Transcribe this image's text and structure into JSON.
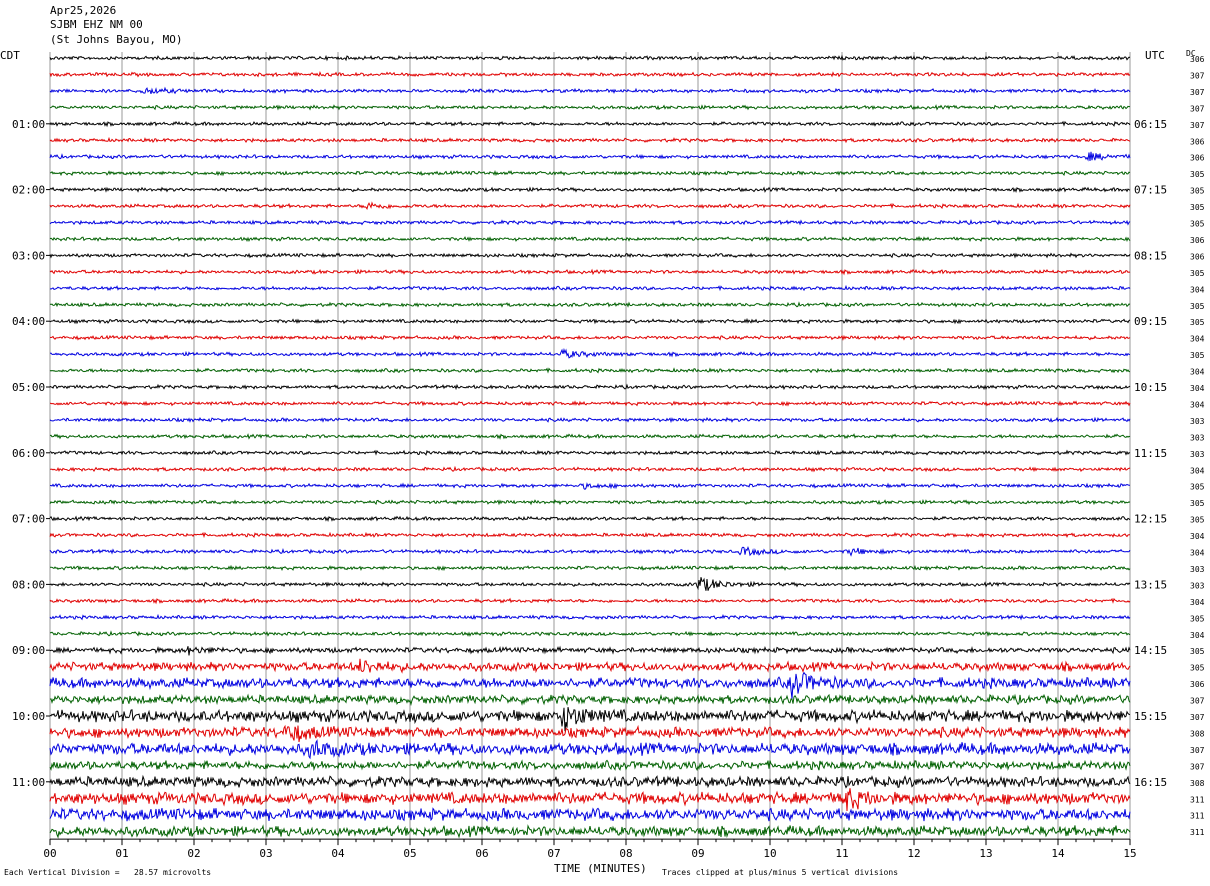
{
  "header": {
    "date": "Apr25,2026",
    "station": "SJBM EHZ NM 00",
    "location": "(St Johns Bayou, MO)"
  },
  "left_tz": "CDT",
  "right_tz": "UTC",
  "dc_label": "DC",
  "footer": {
    "left_note": "Each Vertical Division =   28.57 microvolts",
    "x_title": "TIME (MINUTES)",
    "right_note": "Traces clipped at plus/minus 5 vertical divisions"
  },
  "chart_data": {
    "type": "line",
    "title": "SJBM EHZ NM 00 helicorder",
    "xlabel": "TIME (MINUTES)",
    "xlim": [
      0,
      15
    ],
    "x_ticks": [
      "00",
      "01",
      "02",
      "03",
      "04",
      "05",
      "06",
      "07",
      "08",
      "09",
      "10",
      "11",
      "12",
      "13",
      "14",
      "15"
    ],
    "traces_per_hour": 4,
    "trace_colors": [
      "#000000",
      "#e00000",
      "#0000e0",
      "#006000"
    ],
    "left_hour_labels": [
      "01:00",
      "02:00",
      "03:00",
      "04:00",
      "05:00",
      "06:00",
      "07:00",
      "08:00",
      "09:00",
      "10:00",
      "11:00"
    ],
    "right_hour_labels": [
      "06:15",
      "07:15",
      "08:15",
      "09:15",
      "10:15",
      "11:15",
      "12:15",
      "13:15",
      "14:15",
      "15:15",
      "16:15"
    ],
    "dc_offsets": [
      306,
      307,
      307,
      307,
      307,
      306,
      306,
      305,
      305,
      305,
      305,
      306,
      306,
      305,
      304,
      305,
      305,
      304,
      305,
      304,
      304,
      304,
      303,
      303,
      303,
      304,
      305,
      305,
      305,
      304,
      304,
      303,
      303,
      304,
      305,
      304,
      305,
      305,
      306,
      307,
      307,
      308,
      307,
      307,
      308,
      311,
      311,
      311
    ],
    "amplitudes": [
      2,
      2,
      2,
      2,
      2,
      2,
      2,
      2,
      2,
      2,
      2,
      2,
      2,
      2,
      2,
      2,
      2,
      2,
      2,
      2,
      2,
      2,
      2,
      2,
      2,
      2,
      2,
      2,
      2,
      2,
      2,
      2,
      2,
      2,
      2,
      2,
      3,
      5,
      6,
      5,
      7,
      6,
      7,
      5,
      6,
      7,
      7,
      6
    ],
    "events": [
      {
        "trace": 2,
        "minute": 1.3,
        "amp": 3
      },
      {
        "trace": 6,
        "minute": 14.4,
        "amp": 4
      },
      {
        "trace": 9,
        "minute": 4.4,
        "amp": 3
      },
      {
        "trace": 18,
        "minute": 7.1,
        "amp": 4
      },
      {
        "trace": 26,
        "minute": 7.4,
        "amp": 2
      },
      {
        "trace": 30,
        "minute": 9.6,
        "amp": 4
      },
      {
        "trace": 30,
        "minute": 11.1,
        "amp": 3
      },
      {
        "trace": 32,
        "minute": 9.0,
        "amp": 8
      },
      {
        "trace": 36,
        "minute": 1.9,
        "amp": 3
      },
      {
        "trace": 37,
        "minute": 4.3,
        "amp": 6
      },
      {
        "trace": 38,
        "minute": 10.3,
        "amp": 12
      },
      {
        "trace": 40,
        "minute": 7.1,
        "amp": 13
      },
      {
        "trace": 41,
        "minute": 3.3,
        "amp": 8
      },
      {
        "trace": 42,
        "minute": 3.6,
        "amp": 7
      },
      {
        "trace": 45,
        "minute": 11.0,
        "amp": 10
      }
    ]
  }
}
